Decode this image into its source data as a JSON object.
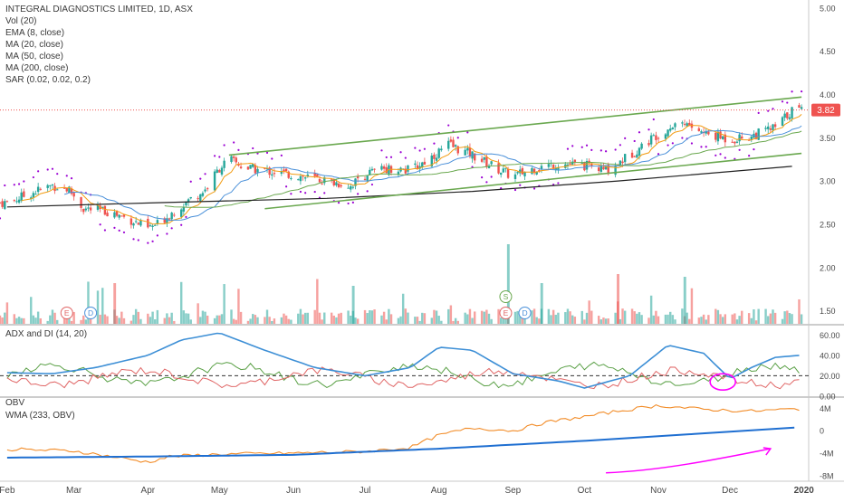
{
  "chart_data": [
    {
      "type": "candlestick",
      "title": "INTEGRAL DIAGNOSTICS LIMITED, 1D, ASX",
      "indicators": [
        "Vol (20)",
        "EMA (8, close)",
        "MA (20, close)",
        "MA (50, close)",
        "MA (200, close)",
        "SAR (0.02, 0.02, 0.2)"
      ],
      "price_axis": {
        "ticks": [
          "5.00",
          "4.50",
          "4.00",
          "3.50",
          "3.00",
          "2.50",
          "2.00",
          "1.50"
        ],
        "ylim": [
          1.35,
          5.05
        ]
      },
      "last_price": "3.82",
      "x_ticks": [
        "Feb",
        "Mar",
        "Apr",
        "May",
        "Jun",
        "Jul",
        "Aug",
        "Sep",
        "Oct",
        "Nov",
        "Dec",
        "2020"
      ],
      "price_path_close": [
        [
          "2019-02-01",
          2.75
        ],
        [
          "2019-02-10",
          2.85
        ],
        [
          "2019-02-20",
          2.95
        ],
        [
          "2019-02-27",
          2.9
        ],
        [
          "2019-03-05",
          2.68
        ],
        [
          "2019-03-15",
          2.65
        ],
        [
          "2019-03-25",
          2.55
        ],
        [
          "2019-04-01",
          2.45
        ],
        [
          "2019-04-05",
          2.5
        ],
        [
          "2019-04-15",
          2.72
        ],
        [
          "2019-04-25",
          2.9
        ],
        [
          "2019-05-01",
          3.15
        ],
        [
          "2019-05-05",
          3.25
        ],
        [
          "2019-05-12",
          3.15
        ],
        [
          "2019-05-25",
          3.1
        ],
        [
          "2019-06-05",
          3.05
        ],
        [
          "2019-06-15",
          3.0
        ],
        [
          "2019-06-25",
          2.95
        ],
        [
          "2019-07-01",
          3.08
        ],
        [
          "2019-07-10",
          3.15
        ],
        [
          "2019-07-20",
          3.12
        ],
        [
          "2019-07-30",
          3.3
        ],
        [
          "2019-08-05",
          3.42
        ],
        [
          "2019-08-15",
          3.3
        ],
        [
          "2019-08-25",
          3.15
        ],
        [
          "2019-09-01",
          3.05
        ],
        [
          "2019-09-10",
          3.15
        ],
        [
          "2019-09-20",
          3.2
        ],
        [
          "2019-10-01",
          3.18
        ],
        [
          "2019-10-10",
          3.12
        ],
        [
          "2019-10-20",
          3.3
        ],
        [
          "2019-11-01",
          3.55
        ],
        [
          "2019-11-10",
          3.7
        ],
        [
          "2019-11-20",
          3.55
        ],
        [
          "2019-12-01",
          3.48
        ],
        [
          "2019-12-10",
          3.52
        ],
        [
          "2019-12-20",
          3.62
        ],
        [
          "2019-12-27",
          3.82
        ]
      ],
      "annotations": {
        "channel_upper": [
          [
            "2019-05-05",
            3.3
          ],
          [
            "2019-12-31",
            3.97
          ]
        ],
        "channel_lower": [
          [
            "2019-05-20",
            2.68
          ],
          [
            "2019-12-31",
            3.32
          ]
        ],
        "ma200_path": [
          [
            "2019-02-01",
            2.7
          ],
          [
            "2019-04-05",
            2.75
          ],
          [
            "2019-06-15",
            2.8
          ],
          [
            "2019-08-15",
            2.88
          ],
          [
            "2019-10-15",
            3.0
          ],
          [
            "2019-12-27",
            3.17
          ]
        ]
      },
      "volume_markers": [
        "E",
        "D",
        "S",
        "E",
        "D"
      ]
    },
    {
      "type": "line",
      "title": "ADX and DI (14, 20)",
      "y_ticks": [
        "60.00",
        "40.00",
        "20.00",
        "0.00"
      ],
      "ylim": [
        0,
        70
      ],
      "threshold": 20,
      "series_colors": {
        "adx": "#3d8fd6",
        "di_plus": "#5aa046",
        "di_minus": "#e06666"
      },
      "adx_path": [
        [
          "2019-02-01",
          23
        ],
        [
          "2019-02-20",
          22
        ],
        [
          "2019-03-10",
          28
        ],
        [
          "2019-04-01",
          40
        ],
        [
          "2019-04-15",
          55
        ],
        [
          "2019-05-01",
          62
        ],
        [
          "2019-05-20",
          45
        ],
        [
          "2019-06-10",
          28
        ],
        [
          "2019-07-01",
          20
        ],
        [
          "2019-07-20",
          28
        ],
        [
          "2019-08-01",
          48
        ],
        [
          "2019-08-15",
          45
        ],
        [
          "2019-09-01",
          22
        ],
        [
          "2019-09-20",
          15
        ],
        [
          "2019-10-01",
          8
        ],
        [
          "2019-10-20",
          20
        ],
        [
          "2019-11-05",
          50
        ],
        [
          "2019-11-20",
          42
        ],
        [
          "2019-12-01",
          17
        ],
        [
          "2019-12-10",
          28
        ],
        [
          "2019-12-20",
          38
        ],
        [
          "2019-12-30",
          40
        ]
      ]
    },
    {
      "type": "line",
      "title": "OBV",
      "subtitle": "WMA (233, OBV)",
      "y_ticks": [
        "4M",
        "0",
        "-4M",
        "-8M"
      ],
      "ylim": [
        -9,
        6
      ],
      "obv_path": [
        [
          "2019-02-01",
          -3.3
        ],
        [
          "2019-03-01",
          -3.6
        ],
        [
          "2019-04-01",
          -5.6
        ],
        [
          "2019-04-10",
          -4.6
        ],
        [
          "2019-05-01",
          -4.2
        ],
        [
          "2019-06-01",
          -4.0
        ],
        [
          "2019-07-01",
          -3.7
        ],
        [
          "2019-07-20",
          -3.0
        ],
        [
          "2019-08-01",
          -0.8
        ],
        [
          "2019-08-15",
          0.5
        ],
        [
          "2019-09-01",
          0.0
        ],
        [
          "2019-09-15",
          1.5
        ],
        [
          "2019-10-01",
          2.5
        ],
        [
          "2019-10-15",
          3.5
        ],
        [
          "2019-11-01",
          4.5
        ],
        [
          "2019-11-20",
          3.8
        ],
        [
          "2019-12-10",
          3.5
        ],
        [
          "2019-12-30",
          3.9
        ]
      ],
      "wma_path": [
        [
          "2019-02-01",
          -4.8
        ],
        [
          "2019-04-01",
          -4.6
        ],
        [
          "2019-06-01",
          -4.3
        ],
        [
          "2019-08-01",
          -3.2
        ],
        [
          "2019-10-01",
          -1.8
        ],
        [
          "2019-12-30",
          0.6
        ]
      ]
    }
  ],
  "note_colors": {
    "channel": "#6aa84f",
    "sar_dots": "#9b00d3",
    "drawing": "#ff00ff",
    "up": "#26a69a",
    "down": "#ef5350"
  }
}
